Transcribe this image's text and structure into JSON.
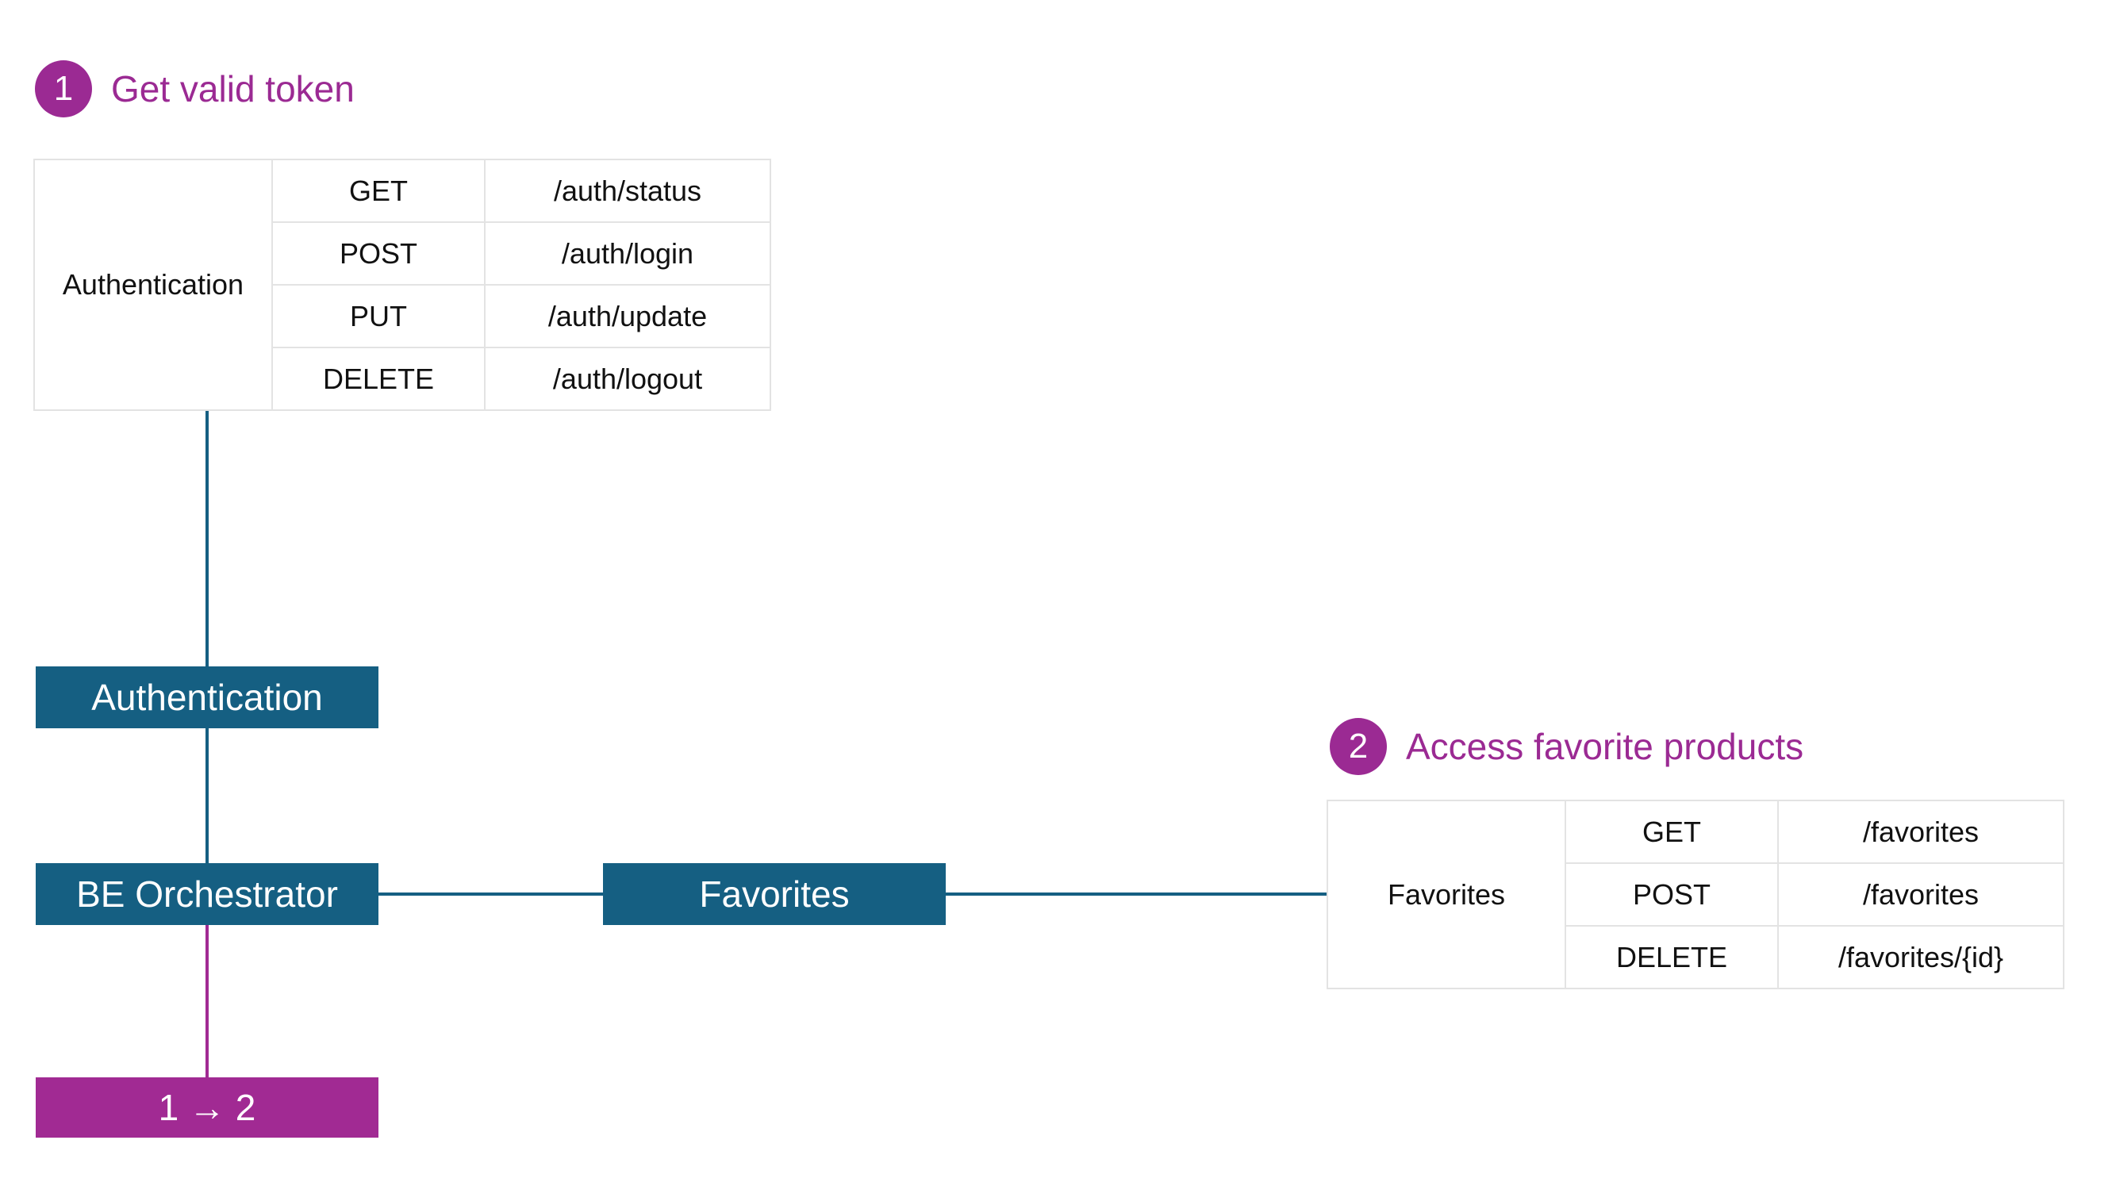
{
  "steps": [
    {
      "number": "1",
      "title": "Get valid token"
    },
    {
      "number": "2",
      "title": "Access favorite products"
    }
  ],
  "auth_table": {
    "group": "Authentication",
    "rows": [
      {
        "method": "GET",
        "path": "/auth/status"
      },
      {
        "method": "POST",
        "path": "/auth/login"
      },
      {
        "method": "PUT",
        "path": "/auth/update"
      },
      {
        "method": "DELETE",
        "path": "/auth/logout"
      }
    ]
  },
  "favorites_table": {
    "group": "Favorites",
    "rows": [
      {
        "method": "GET",
        "path": "/favorites"
      },
      {
        "method": "POST",
        "path": "/favorites"
      },
      {
        "method": "DELETE",
        "path": "/favorites/{id}"
      }
    ]
  },
  "nodes": {
    "authentication": "Authentication",
    "orchestrator": "BE Orchestrator",
    "favorites": "Favorites",
    "sequence": "1 → 2"
  },
  "colors": {
    "node_blue": "#155f82",
    "accent_purple": "#a12a93",
    "step_purple": "#9b2a93"
  }
}
